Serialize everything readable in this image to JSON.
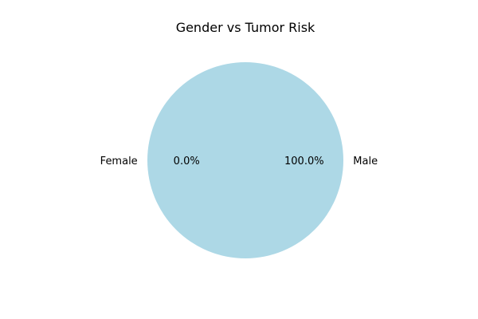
{
  "chart_data": {
    "type": "pie",
    "title": "Gender vs Tumor Risk",
    "categories": [
      "Male",
      "Female"
    ],
    "values": [
      100.0,
      0.0
    ],
    "percent_labels": [
      "100.0%",
      "0.0%"
    ],
    "colors": [
      "#add8e6",
      "#f08080"
    ],
    "legend": false,
    "grid": false
  }
}
